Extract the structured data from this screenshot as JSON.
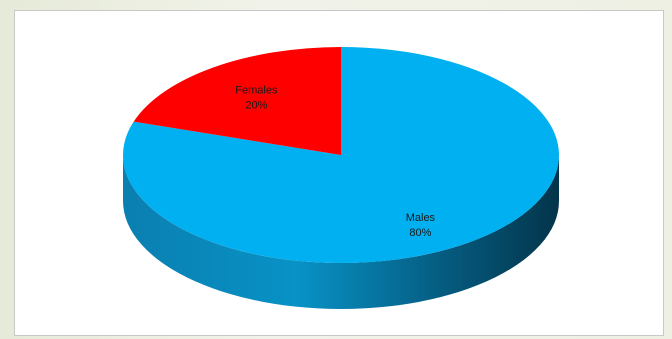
{
  "chart_data": {
    "type": "pie",
    "title": "",
    "three_d": true,
    "start_angle_deg": 0,
    "slices": [
      {
        "name": "Males",
        "value": 80,
        "label": "80%",
        "color": "#00b0f0",
        "side_color": "#0086b8"
      },
      {
        "name": "Females",
        "value": 20,
        "label": "20%",
        "color": "#ff0000",
        "side_color": "#b30000"
      }
    ],
    "legend": "none",
    "data_labels": "inside"
  }
}
